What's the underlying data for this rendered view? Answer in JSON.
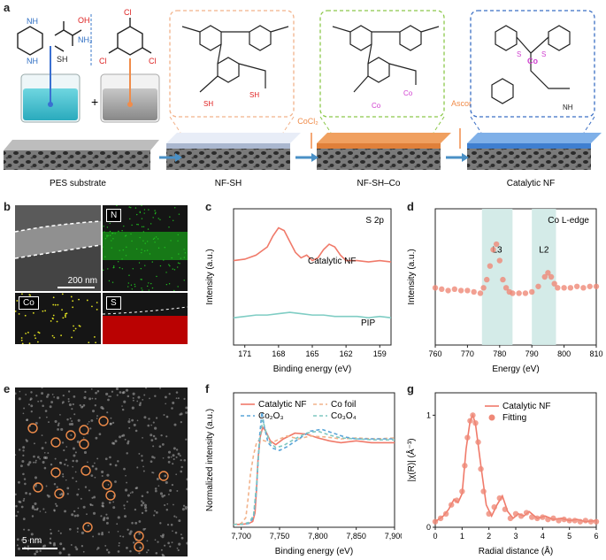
{
  "panel_labels": {
    "a": "a",
    "b": "b",
    "c": "c",
    "d": "d",
    "e": "e",
    "f": "f",
    "g": "g"
  },
  "panel_a": {
    "stages": [
      "PES substrate",
      "NF-SH",
      "NF-SH–Co",
      "Catalytic NF"
    ],
    "reagent_1": "CoCl₂",
    "reagent_2": "Ascorbic acid",
    "plus": "+",
    "amine_label": "NH₂",
    "thiol_label": "SH",
    "acid_label": "OH",
    "cl_label": "Cl",
    "co_label": "Co",
    "s_label": "S",
    "nh_label": "NH",
    "n_label": "N",
    "ho_label": "HO",
    "accent_orange": "#f08c4a",
    "accent_green": "#7dc03f",
    "accent_blue": "#2f6fc4",
    "accent_cyan": "#3bbfd3"
  },
  "panel_b": {
    "tiles": [
      "N",
      "Co",
      "S"
    ],
    "scale_bar": "200 nm",
    "colors": {
      "N": "#20c020",
      "Co": "#e0e020",
      "S": "#e01010"
    }
  },
  "panel_e": {
    "scale_bar": "5 nm",
    "marker_color": "#f08c4a"
  },
  "chart_data": [
    {
      "panel": "c",
      "type": "line",
      "xlabel": "Binding energy (eV)",
      "ylabel": "Intensity (a.u.)",
      "annotation": "S 2p",
      "xlim": [
        172,
        158
      ],
      "x_reversed": true,
      "xticks": [
        "171",
        "168",
        "165",
        "162",
        "159"
      ],
      "series": [
        {
          "name": "Catalytic NF",
          "color": "#f07a6a",
          "x": [
            172,
            171,
            170,
            169,
            168.5,
            168,
            167.5,
            167,
            166.5,
            166,
            165.5,
            165,
            164.5,
            164,
            163.5,
            163,
            162.5,
            162,
            161,
            160,
            159,
            158
          ],
          "y": [
            0.62,
            0.63,
            0.66,
            0.72,
            0.8,
            0.86,
            0.84,
            0.76,
            0.68,
            0.64,
            0.66,
            0.62,
            0.64,
            0.7,
            0.74,
            0.72,
            0.66,
            0.62,
            0.62,
            0.61,
            0.62,
            0.61
          ]
        },
        {
          "name": "PIP",
          "color": "#7fcdc4",
          "x": [
            172,
            171,
            170,
            169,
            168,
            167,
            166,
            165,
            164,
            163,
            162,
            161,
            160,
            159,
            158
          ],
          "y": [
            0.2,
            0.21,
            0.22,
            0.22,
            0.23,
            0.24,
            0.23,
            0.22,
            0.22,
            0.21,
            0.21,
            0.21,
            0.2,
            0.21,
            0.2
          ]
        }
      ]
    },
    {
      "panel": "d",
      "type": "scatter",
      "xlabel": "Energy (eV)",
      "ylabel": "Intensity (a.u.)",
      "annotation": "Co L-edge",
      "xlim": [
        760,
        810
      ],
      "xticks": [
        "760",
        "770",
        "780",
        "790",
        "800",
        "810"
      ],
      "bands": [
        {
          "label": "L3",
          "from": 774.5,
          "to": 784
        },
        {
          "label": "L2",
          "from": 790,
          "to": 797.5
        }
      ],
      "series": [
        {
          "name": "",
          "color": "#ef8877",
          "x": [
            760,
            762,
            764,
            766,
            768,
            770,
            772,
            774,
            775,
            776,
            777,
            778,
            779,
            780,
            781,
            782,
            783,
            784,
            786,
            788,
            790,
            792,
            794,
            795,
            796,
            797,
            798,
            800,
            802,
            804,
            806,
            808,
            810
          ],
          "y": [
            0.42,
            0.41,
            0.4,
            0.41,
            0.4,
            0.4,
            0.39,
            0.38,
            0.42,
            0.48,
            0.58,
            0.7,
            0.74,
            0.62,
            0.48,
            0.42,
            0.39,
            0.38,
            0.38,
            0.38,
            0.39,
            0.43,
            0.5,
            0.53,
            0.5,
            0.45,
            0.42,
            0.42,
            0.42,
            0.43,
            0.42,
            0.43,
            0.43
          ]
        }
      ]
    },
    {
      "panel": "f",
      "type": "line",
      "xlabel": "Binding energy (eV)",
      "ylabel": "Normalized intensity (a.u.)",
      "xlim": [
        7690,
        7900
      ],
      "xticks": [
        "7,700",
        "7,750",
        "7,800",
        "7,850",
        "7,900"
      ],
      "series": [
        {
          "name": "Catalytic NF",
          "color": "#f07a6a",
          "dash": "",
          "x": [
            7690,
            7700,
            7710,
            7715,
            7718,
            7720,
            7722,
            7725,
            7728,
            7732,
            7738,
            7745,
            7755,
            7770,
            7785,
            7800,
            7815,
            7830,
            7850,
            7870,
            7900
          ],
          "y": [
            0.03,
            0.03,
            0.04,
            0.06,
            0.15,
            0.4,
            0.72,
            0.95,
            1.04,
            1.0,
            0.9,
            0.86,
            0.92,
            0.98,
            0.97,
            0.93,
            0.9,
            0.88,
            0.9,
            0.88,
            0.88
          ]
        },
        {
          "name": "Co foil",
          "color": "#f2b28a",
          "dash": "4 3",
          "x": [
            7690,
            7700,
            7706,
            7709,
            7712,
            7716,
            7720,
            7725,
            7730,
            7740,
            7750,
            7760,
            7775,
            7790,
            7810,
            7830,
            7850,
            7875,
            7900
          ],
          "y": [
            0.03,
            0.04,
            0.1,
            0.3,
            0.55,
            0.75,
            0.88,
            0.92,
            0.9,
            0.88,
            0.92,
            0.95,
            0.92,
            0.95,
            0.94,
            0.92,
            0.93,
            0.92,
            0.93
          ]
        },
        {
          "name": "Co₂O₃",
          "color": "#5aa5d8",
          "dash": "4 3",
          "x": [
            7690,
            7700,
            7710,
            7716,
            7720,
            7724,
            7727,
            7730,
            7735,
            7742,
            7750,
            7760,
            7775,
            7790,
            7805,
            7820,
            7835,
            7850,
            7875,
            7900
          ],
          "y": [
            0.03,
            0.03,
            0.04,
            0.1,
            0.4,
            0.95,
            1.2,
            1.05,
            0.88,
            0.82,
            0.8,
            0.84,
            0.92,
            1.0,
            1.02,
            0.98,
            0.94,
            0.92,
            0.92,
            0.92
          ]
        },
        {
          "name": "Co₃O₄",
          "color": "#7fc7c0",
          "dash": "4 3",
          "x": [
            7690,
            7700,
            7710,
            7716,
            7720,
            7724,
            7728,
            7732,
            7738,
            7745,
            7755,
            7770,
            7785,
            7800,
            7815,
            7830,
            7850,
            7875,
            7900
          ],
          "y": [
            0.03,
            0.03,
            0.05,
            0.12,
            0.45,
            0.9,
            1.12,
            1.0,
            0.88,
            0.83,
            0.85,
            0.92,
            0.98,
            1.0,
            0.96,
            0.93,
            0.92,
            0.91,
            0.91
          ]
        }
      ]
    },
    {
      "panel": "g",
      "type": "line",
      "xlabel": "Radial distance (Å)",
      "ylabel": "|χ(R)| (Å⁻³)",
      "xlim": [
        0,
        6
      ],
      "xticks": [
        "0",
        "1",
        "2",
        "3",
        "4",
        "5",
        "6"
      ],
      "series": [
        {
          "name": "Catalytic NF",
          "color": "#f07a6a",
          "kind": "line",
          "x": [
            0,
            0.3,
            0.5,
            0.7,
            0.85,
            1.0,
            1.15,
            1.3,
            1.4,
            1.5,
            1.7,
            1.9,
            2.1,
            2.3,
            2.5,
            2.7,
            2.9,
            3.1,
            3.3,
            3.5,
            3.8,
            4.1,
            4.4,
            4.7,
            5.0,
            5.3,
            5.6,
            6.0
          ],
          "y": [
            0.05,
            0.1,
            0.16,
            0.25,
            0.22,
            0.3,
            0.7,
            0.95,
            1.0,
            0.92,
            0.55,
            0.2,
            0.1,
            0.2,
            0.28,
            0.14,
            0.08,
            0.12,
            0.1,
            0.14,
            0.08,
            0.1,
            0.07,
            0.08,
            0.06,
            0.07,
            0.05,
            0.06
          ]
        },
        {
          "name": "Fitting",
          "color": "#ef8877",
          "kind": "markers",
          "x": [
            0,
            0.2,
            0.4,
            0.6,
            0.8,
            1.0,
            1.1,
            1.2,
            1.3,
            1.4,
            1.5,
            1.6,
            1.7,
            1.8,
            2.0,
            2.2,
            2.4,
            2.6,
            2.8,
            3.0,
            3.2,
            3.4,
            3.6,
            3.8,
            4.0,
            4.2,
            4.4,
            4.6,
            4.8,
            5.0,
            5.2,
            5.4,
            5.6,
            5.8,
            6.0
          ],
          "y": [
            0.05,
            0.08,
            0.12,
            0.2,
            0.24,
            0.32,
            0.55,
            0.8,
            0.95,
            1.0,
            0.93,
            0.76,
            0.52,
            0.32,
            0.12,
            0.18,
            0.26,
            0.16,
            0.08,
            0.12,
            0.1,
            0.13,
            0.09,
            0.08,
            0.09,
            0.07,
            0.08,
            0.06,
            0.07,
            0.06,
            0.06,
            0.05,
            0.06,
            0.05,
            0.05
          ]
        }
      ]
    }
  ]
}
